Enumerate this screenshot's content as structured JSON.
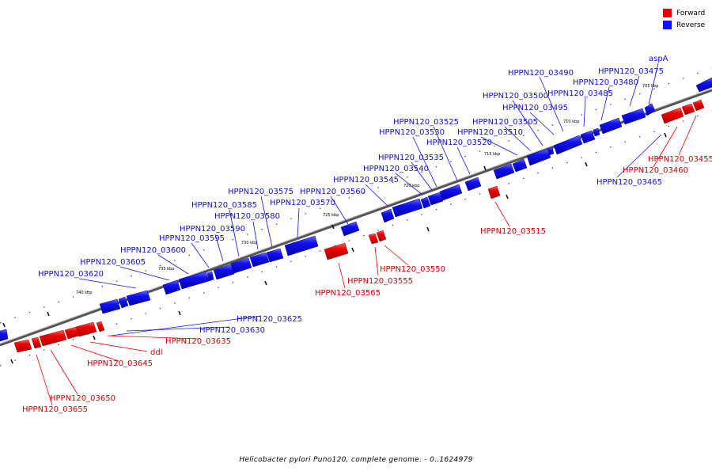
{
  "colors": {
    "forward": "#ee0000",
    "reverse": "#1111ee",
    "backbone": "#777777"
  },
  "legend": [
    {
      "label": "Forward",
      "color": "#ee0000"
    },
    {
      "label": "Reverse",
      "color": "#1111ee"
    }
  ],
  "caption": "Helicobacter pylori Puno120, complete genome. - 0..1624979",
  "ticks": [
    "705 kbp",
    "710 kbp",
    "715 kbp",
    "720 kbp",
    "725 kbp",
    "730 kbp",
    "735 kbp",
    "740 kbp"
  ],
  "forward_genes": [
    "HPPN120_03455",
    "HPPN120_03460",
    "HPPN120_03515",
    "HPPN120_03550",
    "HPPN120_03555",
    "HPPN120_03565",
    "HPPN120_03635",
    "ddl",
    "HPPN120_03645",
    "HPPN120_03650",
    "HPPN120_03655"
  ],
  "reverse_genes": [
    "aspA",
    "HPPN120_03475",
    "HPPN120_03480",
    "HPPN120_03485",
    "HPPN120_03490",
    "HPPN120_03495",
    "HPPN120_03500",
    "HPPN120_03505",
    "HPPN120_03510",
    "HPPN120_03520",
    "HPPN120_03525",
    "HPPN120_03530",
    "HPPN120_03535",
    "HPPN120_03540",
    "HPPN120_03545",
    "HPPN120_03560",
    "HPPN120_03570",
    "HPPN120_03575",
    "HPPN120_03580",
    "HPPN120_03585",
    "HPPN120_03590",
    "HPPN120_03595",
    "HPPN120_03600",
    "HPPN120_03605",
    "HPPN120_03620",
    "HPPN120_03625",
    "HPPN120_03630",
    "HPPN120_03465"
  ]
}
